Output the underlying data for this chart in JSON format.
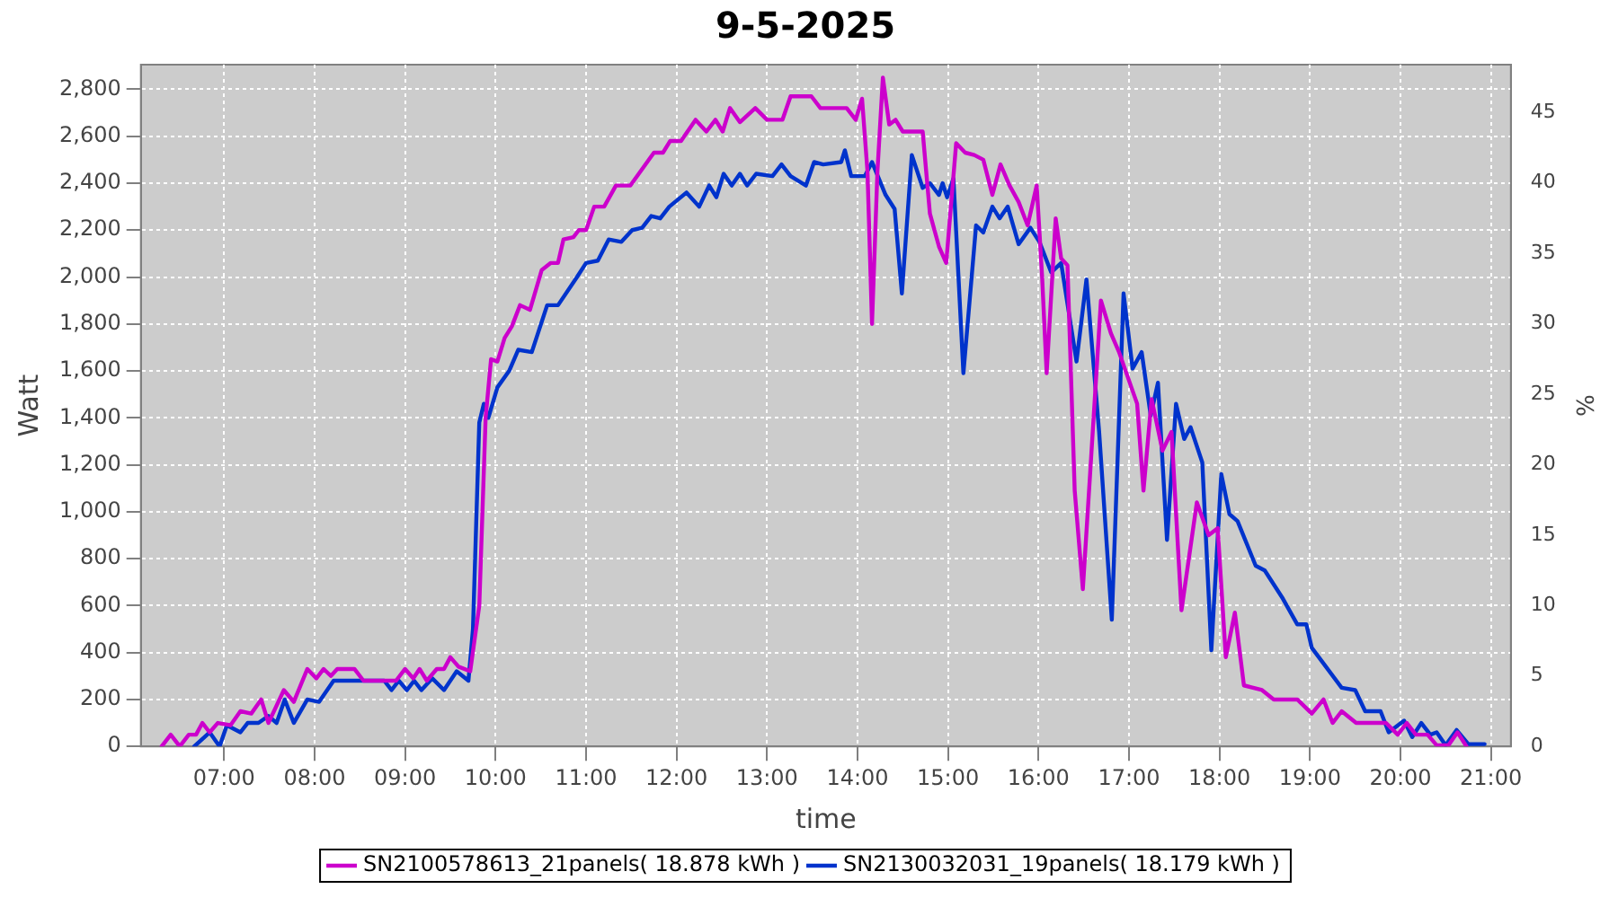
{
  "chart_data": {
    "type": "line",
    "title": "9-5-2025",
    "xlabel": "time",
    "ylabel": "Watt",
    "y2label": "%",
    "xlim": [
      6.08,
      21.22
    ],
    "xticks": [
      {
        "value": 7,
        "label": "07:00"
      },
      {
        "value": 8,
        "label": "08:00"
      },
      {
        "value": 9,
        "label": "09:00"
      },
      {
        "value": 10,
        "label": "10:00"
      },
      {
        "value": 11,
        "label": "11:00"
      },
      {
        "value": 12,
        "label": "12:00"
      },
      {
        "value": 13,
        "label": "13:00"
      },
      {
        "value": 14,
        "label": "14:00"
      },
      {
        "value": 15,
        "label": "15:00"
      },
      {
        "value": 16,
        "label": "16:00"
      },
      {
        "value": 17,
        "label": "17:00"
      },
      {
        "value": 18,
        "label": "18:00"
      },
      {
        "value": 19,
        "label": "19:00"
      },
      {
        "value": 20,
        "label": "20:00"
      },
      {
        "value": 21,
        "label": "21:00"
      }
    ],
    "ylim": [
      0,
      2905
    ],
    "yticks": [
      0,
      200,
      400,
      600,
      800,
      {
        "value": 1000,
        "label": "1,000"
      },
      {
        "value": 1200,
        "label": "1,200"
      },
      {
        "value": 1400,
        "label": "1,400"
      },
      {
        "value": 1600,
        "label": "1,600"
      },
      {
        "value": 1800,
        "label": "1,800"
      },
      {
        "value": 2000,
        "label": "2,000"
      },
      {
        "value": 2200,
        "label": "2,200"
      },
      {
        "value": 2400,
        "label": "2,400"
      },
      {
        "value": 2600,
        "label": "2,600"
      },
      {
        "value": 2800,
        "label": "2,800"
      }
    ],
    "y2lim": [
      0,
      48.4
    ],
    "y2ticks": [
      0,
      5,
      10,
      15,
      20,
      25,
      30,
      35,
      40,
      45
    ],
    "grid": true,
    "legend": "bottom",
    "marker": "none",
    "line_style": "solid",
    "series": [
      {
        "name": "SN2100578613_21panels( 18.878 kWh )",
        "color": "#cc00cc",
        "x": [
          6.31,
          6.41,
          6.51,
          6.61,
          6.69,
          6.76,
          6.84,
          6.93,
          7.07,
          7.18,
          7.3,
          7.41,
          7.49,
          7.66,
          7.77,
          7.92,
          8.02,
          8.1,
          8.18,
          8.25,
          8.44,
          8.54,
          8.9,
          9.0,
          9.09,
          9.16,
          9.24,
          9.35,
          9.43,
          9.5,
          9.59,
          9.72,
          9.82,
          9.89,
          9.95,
          10.02,
          10.1,
          10.18,
          10.27,
          10.38,
          10.51,
          10.61,
          10.69,
          10.75,
          10.86,
          10.92,
          11.0,
          11.09,
          11.2,
          11.33,
          11.49,
          11.75,
          11.85,
          11.93,
          12.05,
          12.21,
          12.33,
          12.43,
          12.51,
          12.59,
          12.7,
          12.87,
          13.0,
          13.17,
          13.26,
          13.49,
          13.59,
          13.88,
          13.98,
          14.05,
          14.11,
          14.16,
          14.22,
          14.28,
          14.35,
          14.42,
          14.5,
          14.72,
          14.8,
          14.9,
          14.98,
          15.09,
          15.19,
          15.29,
          15.39,
          15.49,
          15.58,
          15.68,
          15.78,
          15.88,
          15.98,
          16.04,
          16.09,
          16.19,
          16.25,
          16.32,
          16.4,
          16.49,
          16.57,
          16.69,
          16.8,
          16.89,
          16.99,
          17.09,
          17.16,
          17.25,
          17.37,
          17.47,
          17.58,
          17.75,
          17.88,
          17.98,
          18.07,
          18.17,
          18.27,
          18.47,
          18.6,
          18.86,
          19.02,
          19.15,
          19.25,
          19.35,
          19.51,
          19.84,
          19.97,
          20.07,
          20.17,
          20.3,
          20.4,
          20.53,
          20.63,
          20.73
        ],
        "values": [
          0,
          50,
          0,
          50,
          50,
          100,
          60,
          100,
          90,
          150,
          140,
          200,
          100,
          240,
          190,
          330,
          290,
          330,
          300,
          330,
          330,
          280,
          280,
          330,
          290,
          330,
          280,
          330,
          330,
          380,
          340,
          320,
          600,
          1400,
          1650,
          1640,
          1740,
          1790,
          1880,
          1860,
          2030,
          2060,
          2060,
          2160,
          2170,
          2200,
          2200,
          2300,
          2300,
          2390,
          2390,
          2530,
          2530,
          2580,
          2580,
          2670,
          2620,
          2670,
          2620,
          2720,
          2660,
          2720,
          2670,
          2670,
          2770,
          2770,
          2720,
          2720,
          2670,
          2760,
          2450,
          1800,
          2450,
          2850,
          2650,
          2670,
          2620,
          2620,
          2270,
          2130,
          2060,
          2570,
          2530,
          2520,
          2500,
          2350,
          2480,
          2390,
          2320,
          2220,
          2390,
          2000,
          1590,
          2250,
          2080,
          2050,
          1090,
          670,
          1160,
          1900,
          1760,
          1680,
          1570,
          1460,
          1090,
          1480,
          1260,
          1340,
          580,
          1040,
          900,
          930,
          380,
          570,
          260,
          240,
          200,
          200,
          140,
          200,
          100,
          150,
          100,
          100,
          50,
          100,
          50,
          50,
          5,
          5,
          60,
          0
        ]
      },
      {
        "name": "SN2130032031_19panels( 18.179 kWh )",
        "color": "#0033cc",
        "x": [
          6.67,
          6.84,
          6.95,
          7.03,
          7.18,
          7.26,
          7.38,
          7.49,
          7.58,
          7.67,
          7.77,
          7.92,
          8.05,
          8.21,
          8.77,
          8.85,
          8.93,
          9.02,
          9.1,
          9.18,
          9.3,
          9.43,
          9.57,
          9.7,
          9.75,
          9.82,
          9.87,
          9.92,
          10.02,
          10.15,
          10.25,
          10.4,
          10.57,
          10.69,
          10.9,
          11.0,
          11.13,
          11.25,
          11.39,
          11.51,
          11.62,
          11.72,
          11.82,
          11.92,
          12.11,
          12.25,
          12.36,
          12.44,
          12.52,
          12.61,
          12.7,
          12.78,
          12.88,
          13.06,
          13.16,
          13.26,
          13.43,
          13.52,
          13.62,
          13.82,
          13.86,
          13.93,
          14.08,
          14.16,
          14.31,
          14.41,
          14.49,
          14.6,
          14.72,
          14.8,
          14.9,
          14.94,
          14.99,
          15.06,
          15.17,
          15.31,
          15.39,
          15.49,
          15.57,
          15.66,
          15.78,
          15.91,
          16.01,
          16.14,
          16.25,
          16.42,
          16.53,
          16.67,
          16.81,
          16.94,
          17.04,
          17.14,
          17.24,
          17.32,
          17.42,
          17.52,
          17.61,
          17.68,
          17.81,
          17.91,
          18.02,
          18.11,
          18.2,
          18.4,
          18.5,
          18.7,
          18.86,
          18.96,
          19.02,
          19.35,
          19.5,
          19.61,
          19.78,
          19.87,
          20.04,
          20.13,
          20.23,
          20.33,
          20.4,
          20.5,
          20.62,
          20.75,
          20.93
        ],
        "values": [
          0,
          60,
          0,
          90,
          60,
          100,
          100,
          130,
          100,
          200,
          100,
          200,
          190,
          280,
          280,
          240,
          280,
          240,
          280,
          240,
          290,
          240,
          320,
          280,
          500,
          1380,
          1460,
          1400,
          1530,
          1600,
          1690,
          1680,
          1880,
          1880,
          2000,
          2060,
          2070,
          2160,
          2150,
          2200,
          2210,
          2260,
          2250,
          2300,
          2360,
          2300,
          2390,
          2340,
          2440,
          2390,
          2440,
          2390,
          2440,
          2430,
          2480,
          2430,
          2390,
          2490,
          2480,
          2490,
          2540,
          2430,
          2430,
          2490,
          2350,
          2290,
          1930,
          2520,
          2380,
          2400,
          2350,
          2400,
          2340,
          2420,
          1590,
          2220,
          2190,
          2300,
          2250,
          2300,
          2140,
          2210,
          2150,
          2020,
          2060,
          1640,
          1990,
          1340,
          540,
          1930,
          1610,
          1680,
          1410,
          1550,
          880,
          1460,
          1310,
          1360,
          1210,
          410,
          1160,
          990,
          960,
          770,
          750,
          630,
          520,
          520,
          420,
          250,
          240,
          150,
          150,
          60,
          110,
          40,
          100,
          50,
          60,
          5,
          70,
          10,
          10
        ]
      }
    ]
  }
}
